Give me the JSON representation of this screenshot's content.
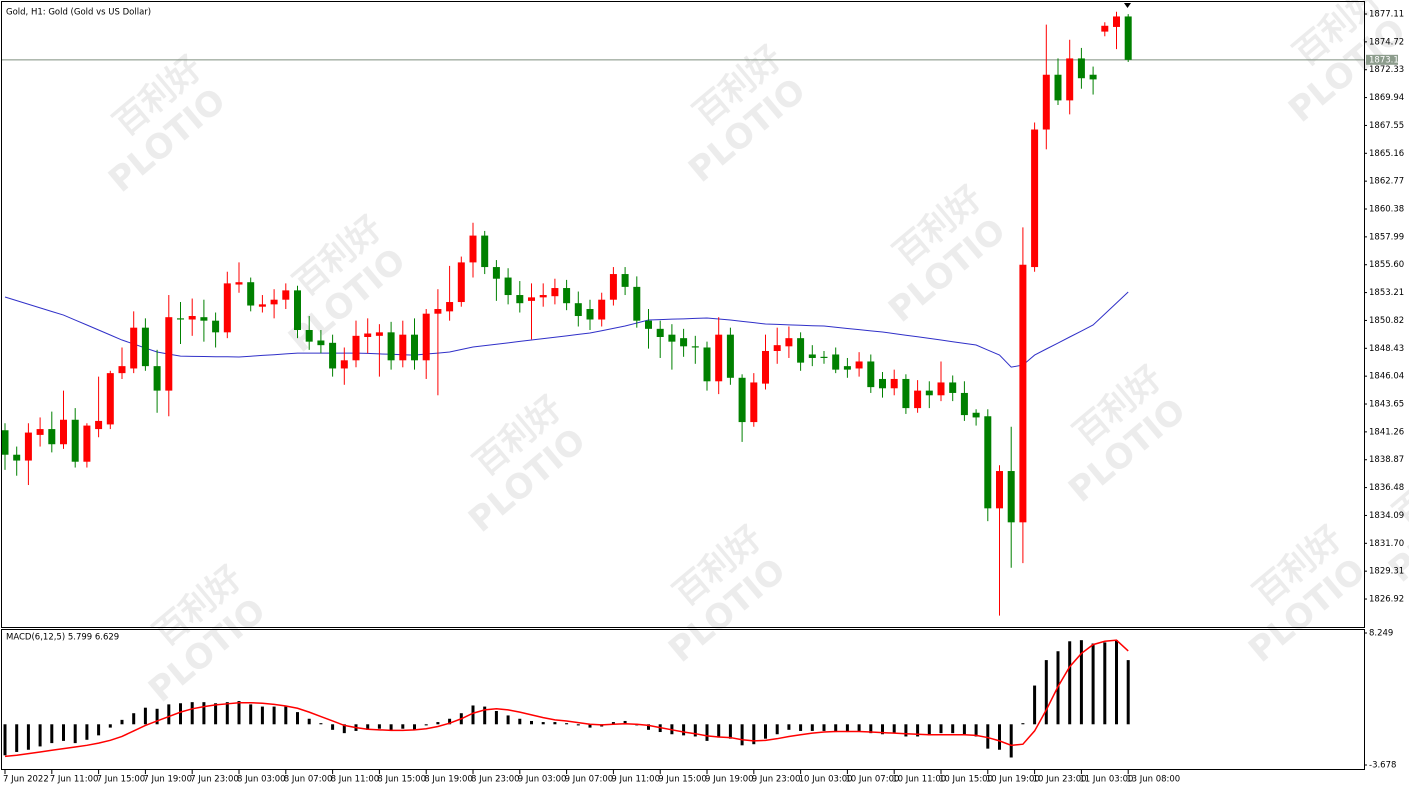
{
  "chart_data": [
    {
      "type": "candlestick",
      "title": "Gold, H1:  Gold (Gold vs US Dollar)",
      "categories": [
        "7 Jun 2022",
        null,
        null,
        null,
        "7 Jun 11:00",
        null,
        null,
        null,
        "7 Jun 15:00",
        null,
        null,
        null,
        "7 Jun 19:00",
        null,
        null,
        null,
        "7 Jun 23:00",
        null,
        null,
        null,
        "8 Jun 03:00",
        null,
        null,
        null,
        "8 Jun 07:00",
        null,
        null,
        null,
        "8 Jun 11:00",
        null,
        null,
        null,
        "8 Jun 15:00",
        null,
        null,
        null,
        "8 Jun 19:00",
        null,
        null,
        null,
        "8 Jun 23:00",
        null,
        null,
        null,
        "9 Jun 03:00",
        null,
        null,
        null,
        "9 Jun 07:00",
        null,
        null,
        null,
        "9 Jun 11:00",
        null,
        null,
        null,
        "9 Jun 15:00",
        null,
        null,
        null,
        "9 Jun 19:00",
        null,
        null,
        null,
        "9 Jun 23:00",
        null,
        null,
        null,
        "10 Jun 03:00",
        null,
        null,
        null,
        "10 Jun 07:00",
        null,
        null,
        null,
        "10 Jun 11:00",
        null,
        null,
        null,
        "10 Jun 15:00",
        null,
        null,
        null,
        "10 Jun 19:00",
        null,
        null,
        null,
        "10 Jun 23:00",
        null,
        null,
        null,
        "11 Jun 03:00",
        null,
        null,
        null,
        "13 Jun 08:00"
      ],
      "open": [
        1841.4,
        1839.3,
        1838.8,
        1841.0,
        1841.5,
        1840.2,
        1842.3,
        1838.7,
        1841.5,
        1841.9,
        1846.3,
        1846.7,
        1850.2,
        1846.9,
        1844.8,
        1851.0,
        1850.9,
        1851.1,
        1850.8,
        1849.8,
        1853.9,
        1854.1,
        1852.0,
        1852.2,
        1852.6,
        1853.4,
        1850.0,
        1849.1,
        1848.9,
        1846.7,
        1847.4,
        1849.4,
        1849.5,
        1849.8,
        1847.4,
        1849.6,
        1847.4,
        1851.4,
        1851.6,
        1852.4,
        1855.8,
        1858.1,
        1855.4,
        1854.5,
        1853.0,
        1852.5,
        1852.8,
        1852.9,
        1853.6,
        1852.3,
        1851.8,
        1850.9,
        1852.6,
        1854.8,
        1853.7,
        1850.8,
        1850.1,
        1849.6,
        1849.3,
        1848.6,
        1848.5,
        1845.6,
        1849.6,
        1845.9,
        1842.1,
        1845.4,
        1848.2,
        1848.6,
        1849.3,
        1847.9,
        1847.7,
        1847.9,
        1846.9,
        1846.7,
        1847.3,
        1845.8,
        1845.0,
        1845.8,
        1843.3,
        1844.8,
        1844.4,
        1845.5,
        1844.6,
        1842.9,
        1842.6,
        1834.7,
        1837.9,
        1833.5,
        1855.4,
        1867.2,
        1871.9,
        1869.7,
        1873.3,
        1871.9,
        1875.6,
        1876.0,
        1876.9
      ],
      "high": [
        1842.0,
        1840.0,
        1842.0,
        1842.5,
        1843.0,
        1844.8,
        1843.3,
        1842.0,
        1846.0,
        1846.5,
        1848.5,
        1851.6,
        1851.0,
        1848.3,
        1853.0,
        1852.4,
        1852.7,
        1852.6,
        1851.5,
        1855.0,
        1855.8,
        1854.5,
        1853.0,
        1853.5,
        1854.0,
        1853.8,
        1851.2,
        1850.0,
        1849.6,
        1848.5,
        1850.8,
        1851.0,
        1850.5,
        1850.7,
        1850.8,
        1851.0,
        1851.8,
        1853.5,
        1855.5,
        1856.3,
        1859.2,
        1858.5,
        1856.0,
        1855.3,
        1854.2,
        1854.0,
        1854.0,
        1854.4,
        1854.3,
        1853.3,
        1852.6,
        1853.2,
        1855.4,
        1855.4,
        1854.6,
        1851.8,
        1850.8,
        1850.5,
        1850.1,
        1849.5,
        1849.0,
        1851.1,
        1850.2,
        1846.2,
        1846.3,
        1849.6,
        1850.2,
        1850.3,
        1849.8,
        1848.7,
        1848.2,
        1848.5,
        1847.6,
        1848.1,
        1847.9,
        1846.4,
        1846.6,
        1846.2,
        1845.7,
        1845.6,
        1847.3,
        1846.1,
        1845.6,
        1843.2,
        1843.2,
        1838.4,
        1841.7,
        1858.8,
        1867.8,
        1876.2,
        1873.3,
        1874.9,
        1874.2,
        1872.6,
        1876.4,
        1877.3,
        1877.1
      ],
      "low": [
        1838.0,
        1837.5,
        1836.7,
        1840.0,
        1839.5,
        1839.8,
        1838.2,
        1838.2,
        1840.8,
        1841.5,
        1845.8,
        1846.3,
        1846.5,
        1842.9,
        1842.6,
        1848.8,
        1849.5,
        1849.0,
        1848.5,
        1849.3,
        1853.2,
        1851.6,
        1851.5,
        1851.0,
        1851.8,
        1849.3,
        1848.3,
        1848.0,
        1846.0,
        1845.3,
        1846.8,
        1848.0,
        1846.0,
        1846.6,
        1846.8,
        1846.6,
        1845.8,
        1844.4,
        1850.8,
        1852.0,
        1854.5,
        1854.8,
        1852.5,
        1852.2,
        1851.5,
        1849.2,
        1852.0,
        1852.2,
        1851.7,
        1850.3,
        1850.0,
        1850.3,
        1852.1,
        1853.0,
        1850.2,
        1848.4,
        1847.6,
        1846.6,
        1847.7,
        1847.1,
        1844.8,
        1844.5,
        1845.3,
        1840.4,
        1841.7,
        1844.9,
        1847.1,
        1847.6,
        1846.5,
        1846.9,
        1847.1,
        1846.3,
        1845.9,
        1846.0,
        1844.6,
        1844.2,
        1844.4,
        1842.8,
        1842.9,
        1843.3,
        1843.9,
        1843.9,
        1842.2,
        1841.8,
        1833.6,
        1825.5,
        1829.6,
        1830.0,
        1855.0,
        1865.5,
        1869.3,
        1868.5,
        1870.7,
        1870.2,
        1875.2,
        1874.1,
        1873.0
      ],
      "close": [
        1839.3,
        1838.8,
        1841.2,
        1841.5,
        1840.2,
        1842.3,
        1838.7,
        1841.8,
        1842.2,
        1846.3,
        1846.9,
        1850.2,
        1846.9,
        1844.8,
        1851.1,
        1850.9,
        1851.2,
        1850.8,
        1849.8,
        1854.0,
        1854.1,
        1852.1,
        1852.2,
        1852.6,
        1853.4,
        1850.0,
        1849.0,
        1848.7,
        1846.7,
        1847.4,
        1849.5,
        1849.7,
        1849.8,
        1847.4,
        1849.6,
        1847.4,
        1851.4,
        1851.8,
        1852.4,
        1855.8,
        1858.1,
        1855.4,
        1854.4,
        1853.0,
        1852.3,
        1852.8,
        1853.0,
        1853.6,
        1852.3,
        1851.2,
        1850.9,
        1852.6,
        1854.8,
        1853.7,
        1850.8,
        1850.1,
        1849.4,
        1849.0,
        1848.6,
        1848.5,
        1845.6,
        1849.6,
        1845.9,
        1842.1,
        1845.5,
        1848.2,
        1848.7,
        1849.3,
        1847.2,
        1847.6,
        1847.6,
        1846.6,
        1846.6,
        1847.3,
        1845.1,
        1845.0,
        1845.8,
        1843.3,
        1844.8,
        1844.4,
        1845.5,
        1844.6,
        1842.7,
        1842.5,
        1834.7,
        1837.9,
        1833.5,
        1855.6,
        1867.2,
        1871.9,
        1869.7,
        1873.3,
        1871.6,
        1871.5,
        1876.1,
        1876.9,
        1873.18
      ],
      "up_color": "#ff0000",
      "down_color": "#008000",
      "moving_average": {
        "color": "#3030c8",
        "values": [
          1852.83,
          1852.52,
          1852.21,
          1851.9,
          1851.59,
          1851.28,
          1850.85,
          1850.43,
          1850.0,
          1849.57,
          1849.14,
          1848.8,
          1848.45,
          1848.11,
          1847.93,
          1847.76,
          1847.74,
          1847.73,
          1847.71,
          1847.7,
          1847.68,
          1847.75,
          1847.82,
          1847.88,
          1847.95,
          1848.02,
          1848.02,
          1848.02,
          1848.02,
          1848.02,
          1848.02,
          1847.99,
          1847.95,
          1847.92,
          1847.88,
          1847.85,
          1847.94,
          1848.02,
          1848.11,
          1848.33,
          1848.54,
          1848.66,
          1848.78,
          1848.9,
          1849.02,
          1849.14,
          1849.26,
          1849.38,
          1849.5,
          1849.62,
          1849.74,
          1849.94,
          1850.14,
          1850.34,
          1850.6,
          1850.86,
          1850.89,
          1850.93,
          1850.96,
          1851.0,
          1851.03,
          1850.94,
          1850.86,
          1850.74,
          1850.63,
          1850.51,
          1850.48,
          1850.44,
          1850.41,
          1850.37,
          1850.34,
          1850.24,
          1850.13,
          1850.03,
          1849.93,
          1849.83,
          1849.69,
          1849.55,
          1849.42,
          1849.28,
          1849.14,
          1848.99,
          1848.85,
          1848.71,
          1848.28,
          1847.85,
          1846.82,
          1846.99,
          1847.85,
          1848.37,
          1848.88,
          1849.4,
          1849.91,
          1850.43,
          1851.37,
          1852.32,
          1853.26
        ]
      },
      "current_price": {
        "value": 1873.18,
        "color": "#7f8f7f"
      },
      "ylim": [
        1824.52,
        1878.14
      ],
      "yticks": [
        1826.92,
        1829.31,
        {
          "value": 1831.7,
          "label": "1831.70"
        },
        1834.09,
        1836.48,
        1838.87,
        1841.26,
        1843.65,
        1846.04,
        1848.43,
        1850.82,
        1853.21,
        {
          "value": 1855.6,
          "label": "1855.60"
        },
        1857.99,
        1860.38,
        1862.77,
        1865.16,
        1867.55,
        1869.94,
        1872.33,
        1874.72,
        1877.11
      ],
      "watermark": [
        "百利好",
        "PLOTIO"
      ]
    },
    {
      "type": "macd",
      "title": "MACD(6,12,5) 5.799 6.629",
      "histogram": {
        "color": "#000000",
        "values": [
          -2.8,
          -2.5,
          -2.3,
          -2.0,
          -1.7,
          -1.5,
          -1.7,
          -1.4,
          -1.0,
          -0.3,
          0.4,
          1.0,
          1.5,
          1.4,
          1.8,
          1.9,
          2.0,
          2.0,
          1.9,
          2.0,
          2.1,
          1.8,
          1.6,
          1.6,
          1.6,
          1.1,
          0.5,
          0.1,
          -0.5,
          -0.8,
          -0.6,
          -0.5,
          -0.4,
          -0.6,
          -0.4,
          -0.5,
          -0.1,
          0.2,
          0.5,
          1.0,
          1.7,
          1.6,
          1.2,
          0.8,
          0.5,
          0.3,
          0.2,
          0.2,
          0.1,
          -0.1,
          -0.3,
          -0.2,
          0.2,
          0.3,
          -0.1,
          -0.5,
          -0.7,
          -0.9,
          -1.0,
          -1.1,
          -1.5,
          -1.2,
          -1.3,
          -1.9,
          -1.8,
          -1.3,
          -0.9,
          -0.5,
          -0.6,
          -0.6,
          -0.6,
          -0.7,
          -0.7,
          -0.6,
          -0.8,
          -0.9,
          -0.8,
          -1.1,
          -1.1,
          -1.0,
          -0.8,
          -0.8,
          -1.0,
          -1.1,
          -2.2,
          -2.3,
          -3.0,
          0.1,
          3.5,
          5.8,
          6.6,
          7.5,
          7.6,
          7.3,
          7.4,
          7.6,
          5.799
        ]
      },
      "signal": {
        "color": "#ff0000",
        "values": [
          -2.9,
          -2.8,
          -2.65,
          -2.5,
          -2.35,
          -2.2,
          -2.05,
          -1.9,
          -1.7,
          -1.45,
          -1.1,
          -0.6,
          -0.1,
          0.3,
          0.7,
          1.1,
          1.4,
          1.6,
          1.75,
          1.85,
          1.95,
          1.95,
          1.9,
          1.8,
          1.65,
          1.45,
          1.1,
          0.7,
          0.3,
          -0.1,
          -0.3,
          -0.45,
          -0.5,
          -0.55,
          -0.55,
          -0.5,
          -0.4,
          -0.2,
          0.1,
          0.5,
          1.0,
          1.3,
          1.4,
          1.3,
          1.1,
          0.85,
          0.6,
          0.4,
          0.3,
          0.15,
          0.0,
          -0.05,
          0.0,
          0.05,
          0.0,
          -0.1,
          -0.3,
          -0.5,
          -0.7,
          -0.85,
          -1.05,
          -1.15,
          -1.2,
          -1.4,
          -1.5,
          -1.45,
          -1.3,
          -1.1,
          -0.95,
          -0.8,
          -0.7,
          -0.65,
          -0.65,
          -0.65,
          -0.7,
          -0.75,
          -0.8,
          -0.85,
          -0.9,
          -0.95,
          -0.95,
          -0.95,
          -0.95,
          -1.0,
          -1.2,
          -1.5,
          -1.9,
          -1.8,
          -0.6,
          1.3,
          3.4,
          5.2,
          6.4,
          7.2,
          7.5,
          7.6,
          6.629
        ]
      },
      "ylim": [
        -4.04,
        8.61
      ],
      "yticks": [
        8.249,
        -3.678
      ]
    }
  ]
}
